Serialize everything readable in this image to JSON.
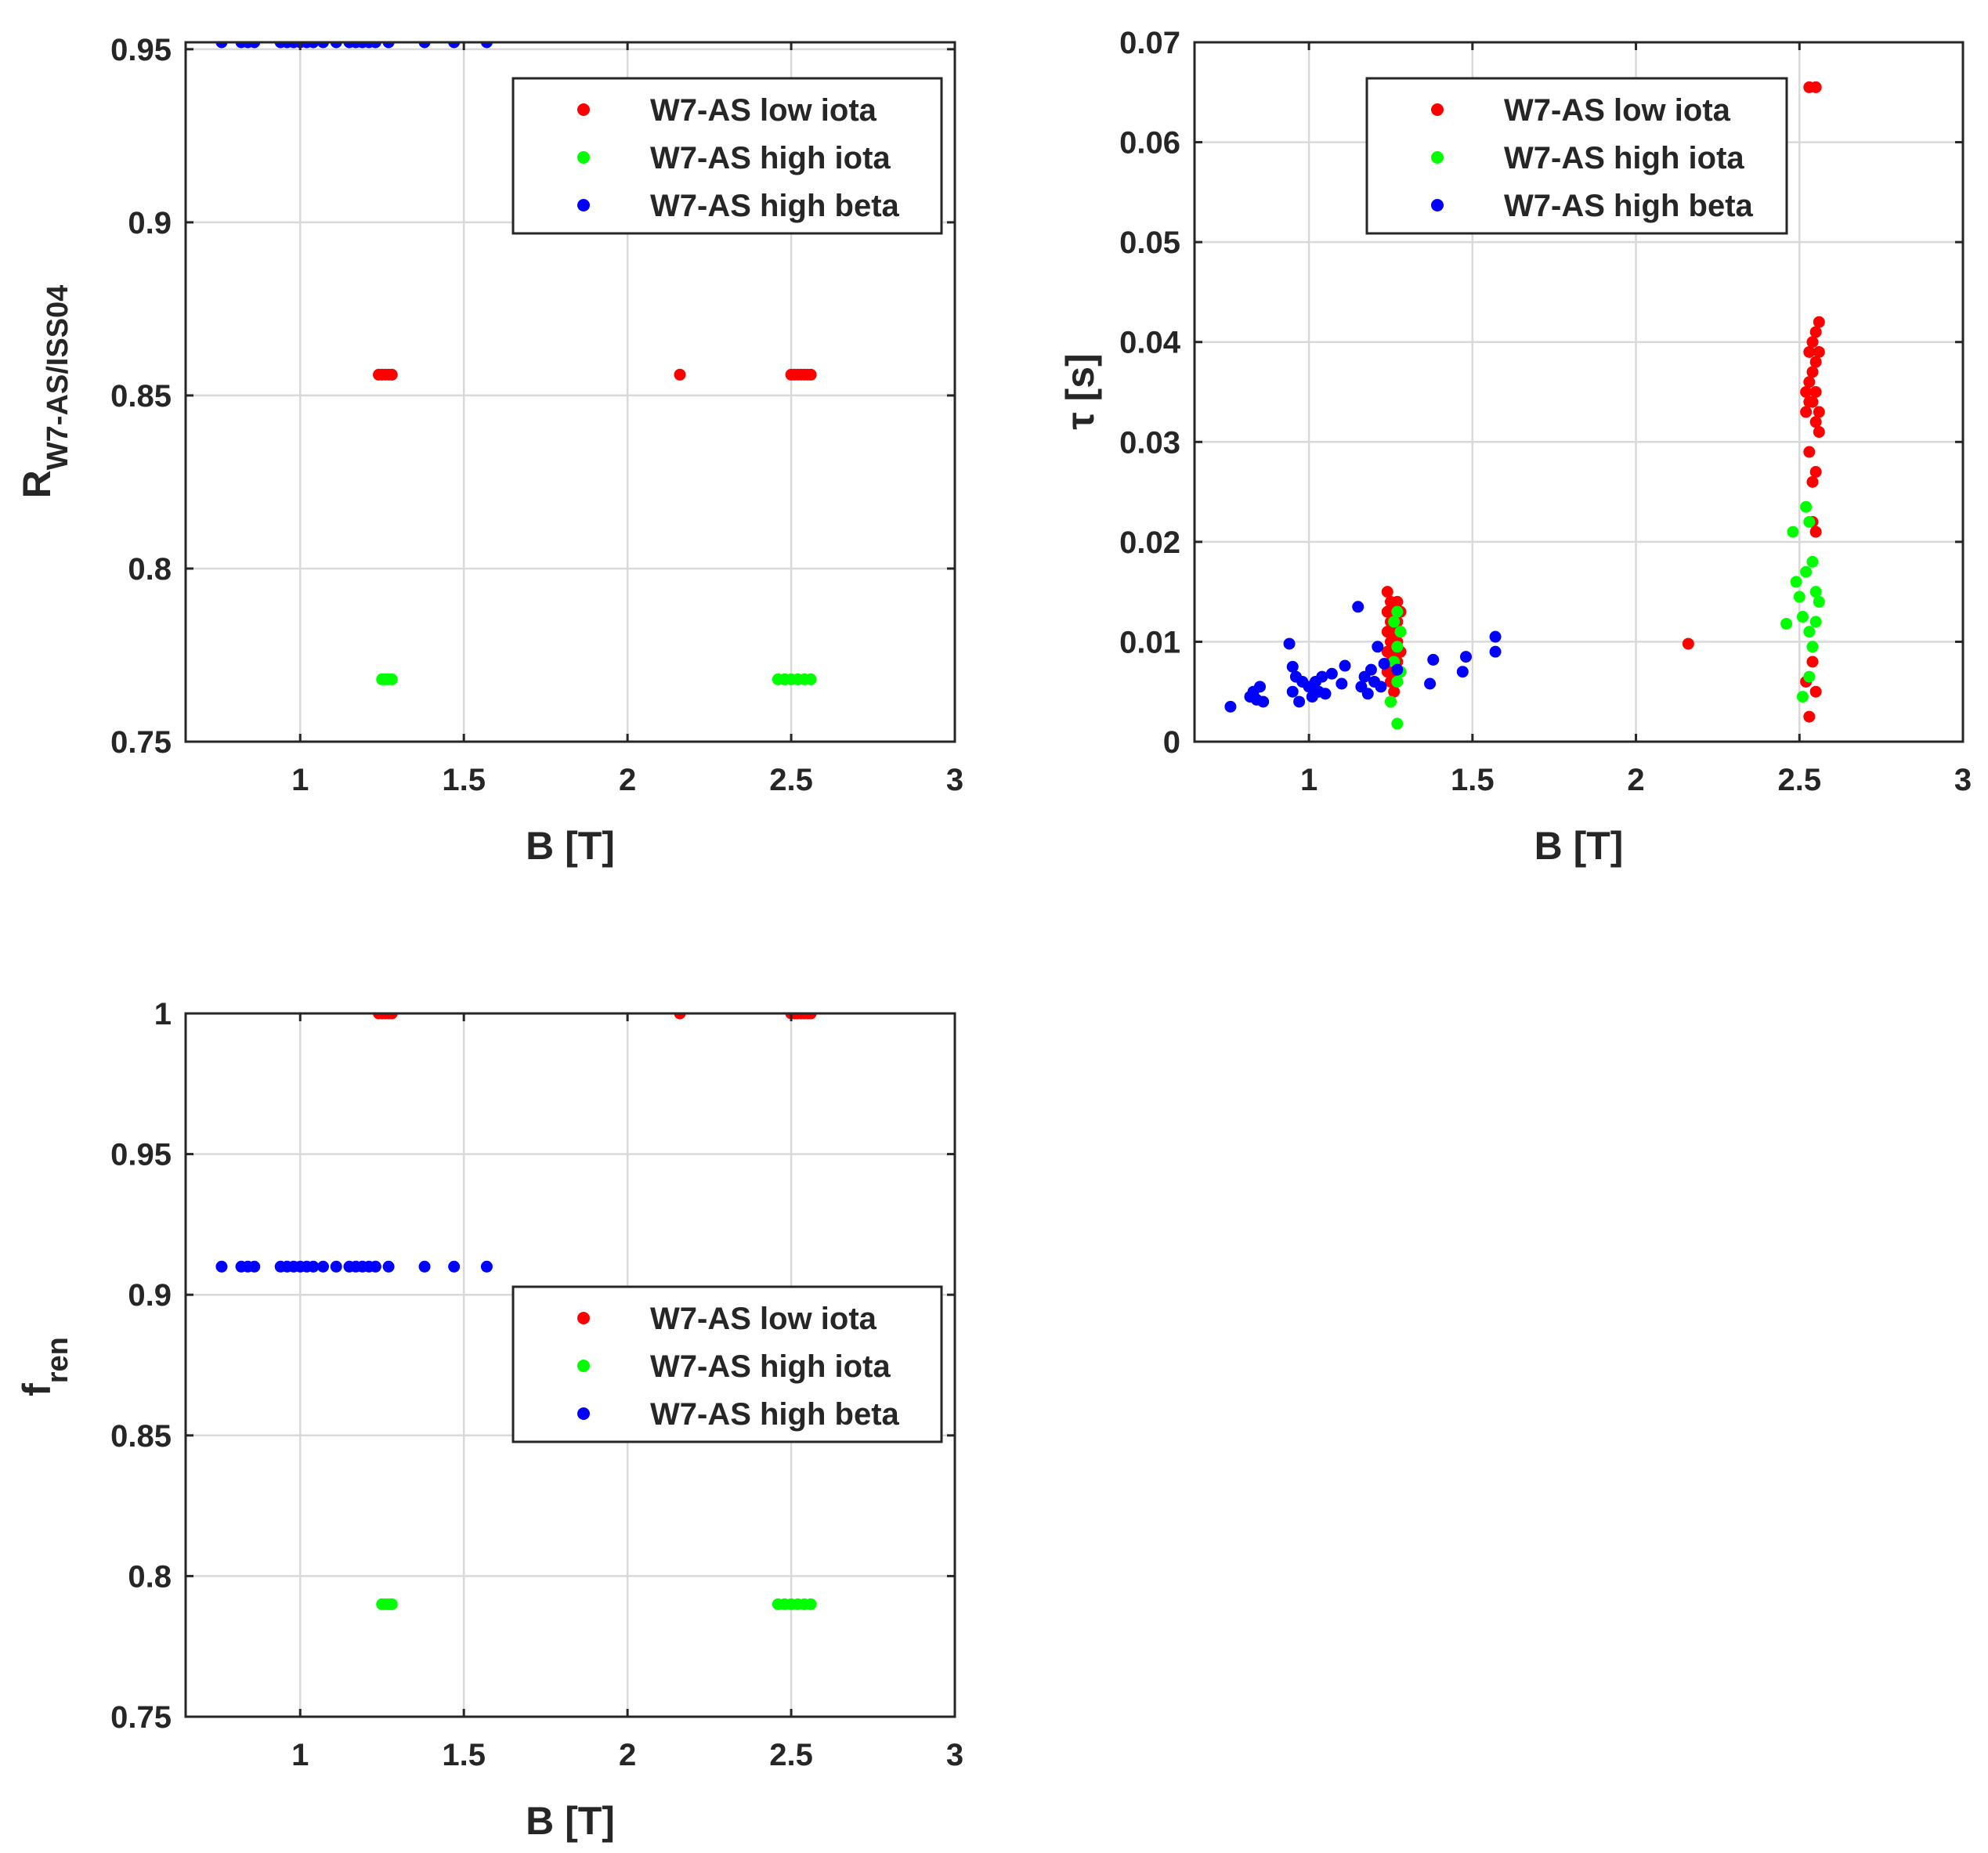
{
  "chart_data": [
    {
      "type": "scatter",
      "xlabel": "B [T]",
      "ylabel": {
        "main": "R",
        "sub": "W7-AS/ISS04"
      },
      "xlim": [
        0.65,
        3
      ],
      "ylim": [
        0.75,
        0.952
      ],
      "xticks": [
        "1",
        "1.5",
        "2",
        "2.5",
        "3"
      ],
      "xtick_values": [
        1,
        1.5,
        2,
        2.5,
        3
      ],
      "yticks": [
        "0.75",
        "0.8",
        "0.85",
        "0.9",
        "0.95"
      ],
      "ytick_values": [
        0.75,
        0.8,
        0.85,
        0.9,
        0.95
      ],
      "grid": true,
      "legend_position": "top-right",
      "series": [
        {
          "name": "W7-AS low iota",
          "color": "#ff0000",
          "x": [
            1.24,
            1.25,
            1.26,
            1.27,
            1.28,
            2.16,
            2.5,
            2.51,
            2.52,
            2.53,
            2.54,
            2.55,
            2.56
          ],
          "y": [
            0.856,
            0.856,
            0.856,
            0.856,
            0.856,
            0.856,
            0.856,
            0.856,
            0.856,
            0.856,
            0.856,
            0.856,
            0.856
          ]
        },
        {
          "name": "W7-AS high iota",
          "color": "#00ff00",
          "x": [
            1.25,
            1.26,
            1.27,
            1.28,
            2.46,
            2.48,
            2.5,
            2.52,
            2.54,
            2.56
          ],
          "y": [
            0.768,
            0.768,
            0.768,
            0.768,
            0.768,
            0.768,
            0.768,
            0.768,
            0.768,
            0.768
          ]
        },
        {
          "name": "W7-AS high beta",
          "color": "#0000ff",
          "x": [
            0.76,
            0.82,
            0.84,
            0.86,
            0.94,
            0.96,
            0.98,
            1.0,
            1.02,
            1.04,
            1.07,
            1.11,
            1.15,
            1.17,
            1.19,
            1.21,
            1.23,
            1.27,
            1.38,
            1.47,
            1.57
          ],
          "y": [
            0.952,
            0.952,
            0.952,
            0.952,
            0.952,
            0.952,
            0.952,
            0.952,
            0.952,
            0.952,
            0.952,
            0.952,
            0.952,
            0.952,
            0.952,
            0.952,
            0.952,
            0.952,
            0.952,
            0.952,
            0.952
          ]
        }
      ]
    },
    {
      "type": "scatter",
      "xlabel": "B [T]",
      "ylabel": {
        "main": "τ [s]",
        "sub": ""
      },
      "xlim": [
        0.65,
        3
      ],
      "ylim": [
        0,
        0.07
      ],
      "xticks": [
        "1",
        "1.5",
        "2",
        "2.5",
        "3"
      ],
      "xtick_values": [
        1,
        1.5,
        2,
        2.5,
        3
      ],
      "yticks": [
        "0",
        "0.01",
        "0.02",
        "0.03",
        "0.04",
        "0.05",
        "0.06",
        "0.07"
      ],
      "ytick_values": [
        0,
        0.01,
        0.02,
        0.03,
        0.04,
        0.05,
        0.06,
        0.07
      ],
      "grid": true,
      "legend_position": "top-right",
      "series": [
        {
          "name": "W7-AS low iota",
          "color": "#ff0000",
          "x": [
            1.24,
            1.24,
            1.24,
            1.24,
            1.24,
            1.25,
            1.25,
            1.25,
            1.25,
            1.25,
            1.25,
            1.26,
            1.26,
            1.26,
            1.26,
            1.26,
            1.27,
            1.27,
            1.27,
            1.27,
            1.27,
            1.28,
            1.28,
            1.28,
            1.28,
            2.16,
            2.52,
            2.52,
            2.52,
            2.53,
            2.53,
            2.53,
            2.53,
            2.53,
            2.54,
            2.54,
            2.54,
            2.54,
            2.54,
            2.54,
            2.55,
            2.55,
            2.55,
            2.55,
            2.55,
            2.55,
            2.55,
            2.56,
            2.56,
            2.56,
            2.56,
            2.53,
            2.55
          ],
          "y": [
            0.015,
            0.013,
            0.011,
            0.009,
            0.007,
            0.014,
            0.012,
            0.01,
            0.008,
            0.006,
            0.004,
            0.013,
            0.011,
            0.009,
            0.007,
            0.005,
            0.014,
            0.012,
            0.01,
            0.008,
            0.006,
            0.013,
            0.011,
            0.009,
            0.007,
            0.0098,
            0.035,
            0.033,
            0.006,
            0.039,
            0.036,
            0.034,
            0.029,
            0.0025,
            0.04,
            0.037,
            0.034,
            0.026,
            0.022,
            0.008,
            0.041,
            0.038,
            0.035,
            0.032,
            0.027,
            0.021,
            0.005,
            0.042,
            0.039,
            0.033,
            0.031,
            0.0655,
            0.0655
          ],
          "highlight": {
            "x": 2.55,
            "y": 0.0655
          }
        },
        {
          "name": "W7-AS high iota",
          "color": "#00ff00",
          "x": [
            1.25,
            1.26,
            1.26,
            1.27,
            1.27,
            1.27,
            1.27,
            1.28,
            1.28,
            2.46,
            2.48,
            2.49,
            2.5,
            2.51,
            2.51,
            2.52,
            2.52,
            2.53,
            2.53,
            2.53,
            2.54,
            2.54,
            2.55,
            2.55,
            2.56
          ],
          "y": [
            0.004,
            0.012,
            0.008,
            0.013,
            0.0095,
            0.006,
            0.0018,
            0.011,
            0.007,
            0.0118,
            0.021,
            0.016,
            0.0145,
            0.0045,
            0.0125,
            0.0235,
            0.017,
            0.022,
            0.011,
            0.0065,
            0.018,
            0.0095,
            0.015,
            0.012,
            0.014
          ]
        },
        {
          "name": "W7-AS high beta",
          "color": "#0000ff",
          "x": [
            0.76,
            0.82,
            0.83,
            0.84,
            0.85,
            0.86,
            0.94,
            0.95,
            0.95,
            0.96,
            0.97,
            0.98,
            1.0,
            1.01,
            1.02,
            1.03,
            1.04,
            1.05,
            1.07,
            1.1,
            1.11,
            1.15,
            1.16,
            1.17,
            1.18,
            1.19,
            1.2,
            1.21,
            1.22,
            1.23,
            1.27,
            1.37,
            1.38,
            1.47,
            1.48,
            1.57,
            1.57
          ],
          "y": [
            0.0035,
            0.0045,
            0.005,
            0.0042,
            0.0055,
            0.004,
            0.0098,
            0.0075,
            0.005,
            0.0065,
            0.004,
            0.006,
            0.0055,
            0.0045,
            0.006,
            0.005,
            0.0065,
            0.0048,
            0.0068,
            0.0058,
            0.0076,
            0.0135,
            0.0055,
            0.0065,
            0.0048,
            0.0072,
            0.006,
            0.0095,
            0.0055,
            0.0078,
            0.0072,
            0.0058,
            0.0082,
            0.007,
            0.0085,
            0.0105,
            0.009
          ]
        }
      ]
    },
    {
      "type": "scatter",
      "xlabel": "B [T]",
      "ylabel": {
        "main": "f",
        "sub": "ren"
      },
      "xlim": [
        0.65,
        3
      ],
      "ylim": [
        0.75,
        1
      ],
      "xticks": [
        "1",
        "1.5",
        "2",
        "2.5",
        "3"
      ],
      "xtick_values": [
        1,
        1.5,
        2,
        2.5,
        3
      ],
      "yticks": [
        "0.75",
        "0.8",
        "0.85",
        "0.9",
        "0.95",
        "1"
      ],
      "ytick_values": [
        0.75,
        0.8,
        0.85,
        0.9,
        0.95,
        1
      ],
      "grid": true,
      "legend_position": "center-right",
      "series": [
        {
          "name": "W7-AS low iota",
          "color": "#ff0000",
          "x": [
            1.24,
            1.25,
            1.26,
            1.27,
            1.28,
            2.16,
            2.5,
            2.51,
            2.52,
            2.53,
            2.54,
            2.55,
            2.56
          ],
          "y": [
            1,
            1,
            1,
            1,
            1,
            1,
            1,
            1,
            1,
            1,
            1,
            1,
            1
          ]
        },
        {
          "name": "W7-AS high iota",
          "color": "#00ff00",
          "x": [
            1.25,
            1.26,
            1.27,
            1.28,
            2.46,
            2.48,
            2.5,
            2.52,
            2.54,
            2.56
          ],
          "y": [
            0.79,
            0.79,
            0.79,
            0.79,
            0.79,
            0.79,
            0.79,
            0.79,
            0.79,
            0.79
          ]
        },
        {
          "name": "W7-AS high beta",
          "color": "#0000ff",
          "x": [
            0.76,
            0.82,
            0.84,
            0.86,
            0.94,
            0.96,
            0.98,
            1.0,
            1.02,
            1.04,
            1.07,
            1.11,
            1.15,
            1.17,
            1.19,
            1.21,
            1.23,
            1.27,
            1.38,
            1.47,
            1.57
          ],
          "y": [
            0.91,
            0.91,
            0.91,
            0.91,
            0.91,
            0.91,
            0.91,
            0.91,
            0.91,
            0.91,
            0.91,
            0.91,
            0.91,
            0.91,
            0.91,
            0.91,
            0.91,
            0.91,
            0.91,
            0.91,
            0.91
          ]
        }
      ]
    }
  ]
}
